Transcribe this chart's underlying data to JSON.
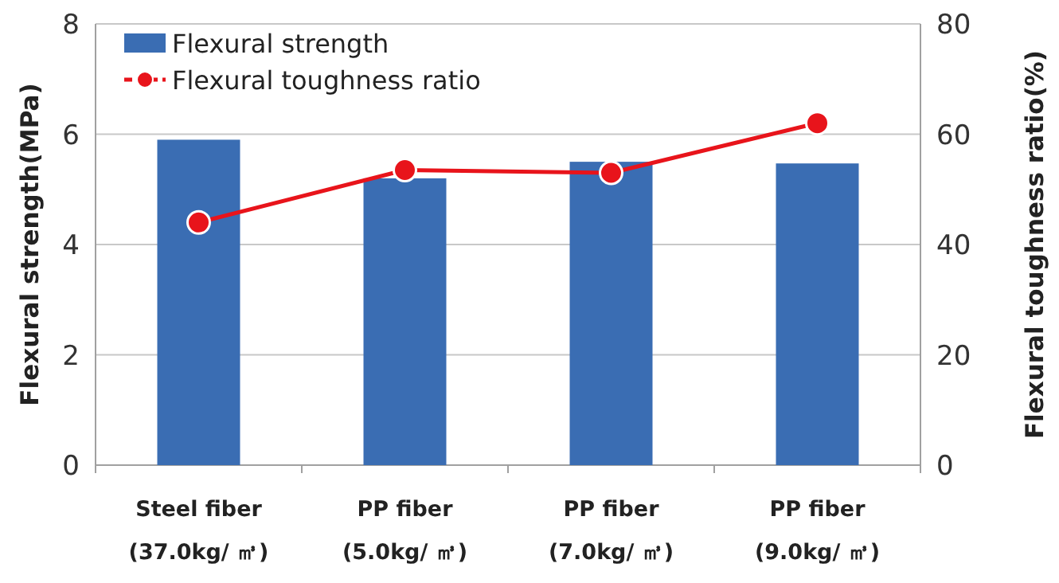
{
  "chart_data": {
    "type": "bar",
    "categories": [
      "Steel fiber\n(37.0kg/ ㎥)",
      "PP fiber\n(5.0kg/ ㎥)",
      "PP fiber\n(7.0kg/ ㎥)",
      "PP fiber\n(9.0kg/ ㎥)"
    ],
    "series": [
      {
        "name": "Flexural strength",
        "color": "#3a6db3",
        "values": [
          5.9,
          5.2,
          5.5,
          5.47
        ]
      },
      {
        "name": "Flexural toughness ratio",
        "type": "line",
        "axis": "y2",
        "color": "#e8141b",
        "marker": "circle",
        "values": [
          44,
          53.5,
          53,
          62
        ]
      }
    ],
    "ylabel": "Flexural strength(MPa)",
    "y2label": "Flexural toughness ratio(%)",
    "ylim": [
      0,
      8
    ],
    "yticks": [
      0,
      2,
      4,
      6,
      8
    ],
    "y2lim": [
      0,
      80
    ],
    "y2ticks": [
      0,
      20,
      40,
      60,
      80
    ],
    "grid": "y",
    "legend": "top left"
  }
}
